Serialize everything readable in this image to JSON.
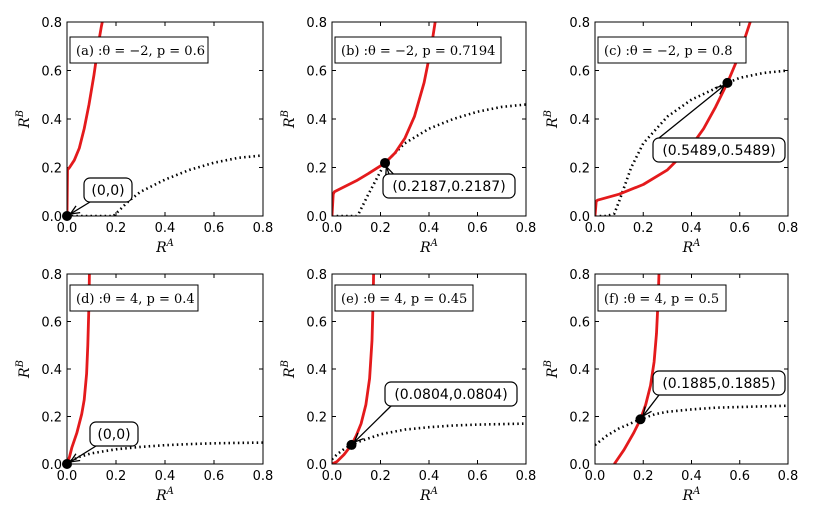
{
  "chart_data": {
    "type": "line",
    "layout": "2x3 grid of subplots",
    "xlabel": "R^A",
    "ylabel": "R^B",
    "xlim": [
      0,
      0.8
    ],
    "ylim": [
      0,
      0.8
    ],
    "xticks": [
      "0.0",
      "0.2",
      "0.4",
      "0.6",
      "0.8"
    ],
    "yticks": [
      "0.0",
      "0.2",
      "0.4",
      "0.6",
      "0.8"
    ],
    "legend": "none",
    "series_styles": {
      "solid": {
        "color": "#e41a1c",
        "style": "solid"
      },
      "dotted": {
        "color": "#000000",
        "style": "dotted"
      }
    },
    "panels": [
      {
        "title": "(a) :θ = −2, p = 0.6",
        "equilibrium": {
          "x": 0.0,
          "y": 0.0,
          "label": "(0,0)"
        },
        "solid_curve": {
          "x": [
            0,
            0.002,
            0.01,
            0.03,
            0.05,
            0.07,
            0.09,
            0.11,
            0.13,
            0.14,
            0.15
          ],
          "y": [
            0,
            0.19,
            0.2,
            0.23,
            0.28,
            0.36,
            0.46,
            0.58,
            0.72,
            0.78,
            0.83
          ]
        },
        "dotted_curve": {
          "x": [
            0,
            0.05,
            0.1,
            0.15,
            0.19,
            0.2,
            0.25,
            0.3,
            0.4,
            0.5,
            0.6,
            0.7,
            0.8
          ],
          "y": [
            0,
            0,
            0,
            0,
            0,
            0.01,
            0.06,
            0.1,
            0.15,
            0.19,
            0.22,
            0.24,
            0.25
          ]
        }
      },
      {
        "title": "(b) :θ = −2, p = 0.7194",
        "equilibrium": {
          "x": 0.2187,
          "y": 0.2187,
          "label": "(0.2187,0.2187)"
        },
        "solid_curve": {
          "x": [
            0,
            0.005,
            0.01,
            0.05,
            0.1,
            0.15,
            0.2187,
            0.26,
            0.3,
            0.34,
            0.38,
            0.41,
            0.43
          ],
          "y": [
            0,
            0.09,
            0.1,
            0.12,
            0.145,
            0.175,
            0.2187,
            0.26,
            0.32,
            0.41,
            0.55,
            0.7,
            0.83
          ]
        },
        "dotted_curve": {
          "x": [
            0,
            0.05,
            0.1,
            0.11,
            0.15,
            0.2187,
            0.3,
            0.4,
            0.5,
            0.6,
            0.7,
            0.8
          ],
          "y": [
            0,
            0,
            0,
            0.01,
            0.09,
            0.2187,
            0.3,
            0.36,
            0.4,
            0.43,
            0.45,
            0.46
          ]
        }
      },
      {
        "title": "(c) :θ = −2, p = 0.8",
        "equilibrium": {
          "x": 0.5489,
          "y": 0.5489,
          "label": "(0.5489,0.5489)"
        },
        "solid_curve": {
          "x": [
            0,
            0.005,
            0.01,
            0.1,
            0.2,
            0.3,
            0.4,
            0.45,
            0.5,
            0.5489,
            0.6,
            0.63,
            0.65
          ],
          "y": [
            0,
            0.06,
            0.065,
            0.09,
            0.13,
            0.19,
            0.29,
            0.36,
            0.45,
            0.5489,
            0.67,
            0.76,
            0.82
          ]
        },
        "dotted_curve": {
          "x": [
            0,
            0.05,
            0.08,
            0.1,
            0.15,
            0.2,
            0.3,
            0.4,
            0.5489,
            0.6,
            0.7,
            0.8
          ],
          "y": [
            0,
            0,
            0.01,
            0.06,
            0.2,
            0.3,
            0.41,
            0.48,
            0.5489,
            0.57,
            0.59,
            0.6
          ]
        }
      },
      {
        "title": "(d) :θ = 4, p = 0.4",
        "equilibrium": {
          "x": 0.0,
          "y": 0.0,
          "label": "(0,0)"
        },
        "solid_curve": {
          "x": [
            0,
            0.01,
            0.02,
            0.04,
            0.06,
            0.07,
            0.08,
            0.085,
            0.09,
            0.092
          ],
          "y": [
            0,
            0.03,
            0.07,
            0.13,
            0.21,
            0.27,
            0.38,
            0.5,
            0.68,
            0.83
          ]
        },
        "dotted_curve": {
          "x": [
            0,
            0.02,
            0.05,
            0.1,
            0.2,
            0.3,
            0.4,
            0.5,
            0.6,
            0.7,
            0.8
          ],
          "y": [
            0,
            0.015,
            0.03,
            0.045,
            0.062,
            0.072,
            0.079,
            0.084,
            0.087,
            0.089,
            0.09
          ]
        }
      },
      {
        "title": "(e) :θ = 4, p = 0.45",
        "equilibrium": {
          "x": 0.0804,
          "y": 0.0804,
          "label": "(0.0804,0.0804)"
        },
        "solid_curve": {
          "x": [
            0,
            0.02,
            0.05,
            0.0804,
            0.1,
            0.12,
            0.14,
            0.155,
            0.165,
            0.17,
            0.172
          ],
          "y": [
            0,
            0.01,
            0.04,
            0.0804,
            0.12,
            0.17,
            0.25,
            0.36,
            0.52,
            0.7,
            0.83
          ]
        },
        "dotted_curve": {
          "x": [
            0,
            0.02,
            0.05,
            0.0804,
            0.1,
            0.2,
            0.3,
            0.4,
            0.5,
            0.6,
            0.7,
            0.8
          ],
          "y": [
            0.02,
            0.04,
            0.063,
            0.0804,
            0.09,
            0.125,
            0.145,
            0.155,
            0.162,
            0.166,
            0.168,
            0.17
          ]
        }
      },
      {
        "title": "(f) :θ = 4, p = 0.5",
        "equilibrium": {
          "x": 0.1885,
          "y": 0.1885,
          "label": "(0.1885,0.1885)"
        },
        "solid_curve": {
          "x": [
            0.08,
            0.12,
            0.16,
            0.1885,
            0.21,
            0.23,
            0.245,
            0.255,
            0.262,
            0.266
          ],
          "y": [
            0,
            0.06,
            0.13,
            0.1885,
            0.25,
            0.33,
            0.43,
            0.55,
            0.7,
            0.83
          ]
        },
        "dotted_curve": {
          "x": [
            0,
            0.05,
            0.1,
            0.1885,
            0.25,
            0.3,
            0.4,
            0.5,
            0.6,
            0.7,
            0.8
          ],
          "y": [
            0.08,
            0.12,
            0.15,
            0.1885,
            0.21,
            0.22,
            0.23,
            0.237,
            0.24,
            0.243,
            0.245
          ]
        }
      }
    ]
  }
}
